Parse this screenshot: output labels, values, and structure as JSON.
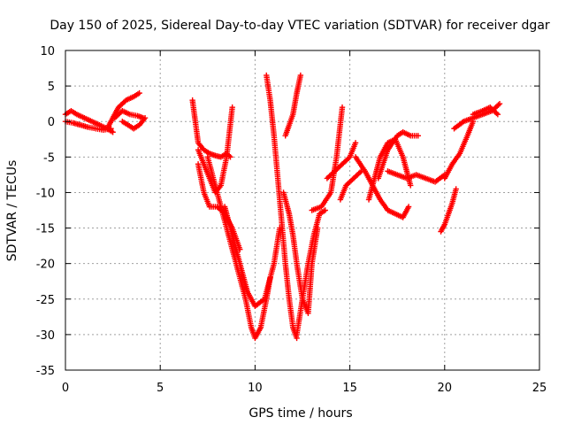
{
  "chart_data": {
    "type": "scatter",
    "title": "Day 150 of 2025, Sidereal Day-to-day VTEC variation (SDTVAR) for receiver dgar",
    "xlabel": "GPS time / hours",
    "ylabel": "SDTVAR / TECUs",
    "xlim": [
      0,
      25
    ],
    "ylim": [
      -35,
      10
    ],
    "xticks": [
      0,
      5,
      10,
      15,
      20,
      25
    ],
    "yticks": [
      10,
      5,
      0,
      -5,
      -10,
      -15,
      -20,
      -25,
      -30,
      -35
    ],
    "grid": true,
    "marker": "plus",
    "color": "#ff0000",
    "series": [
      {
        "x": [
          0.0,
          0.3,
          0.6,
          1.0,
          1.4,
          1.8,
          2.2,
          2.5
        ],
        "y": [
          1.0,
          1.5,
          1.0,
          0.5,
          0.0,
          -0.5,
          -1.0,
          -1.5
        ]
      },
      {
        "x": [
          0.0,
          0.4,
          0.8,
          1.2,
          1.6,
          2.0,
          2.4
        ],
        "y": [
          0.0,
          -0.2,
          -0.5,
          -0.8,
          -1.0,
          -1.2,
          -1.0
        ]
      },
      {
        "x": [
          2.2,
          2.5,
          2.8,
          3.2,
          3.6,
          3.9
        ],
        "y": [
          -1.0,
          0.5,
          2.0,
          3.0,
          3.5,
          4.0
        ]
      },
      {
        "x": [
          3.0,
          3.3,
          3.6,
          3.9,
          4.2
        ],
        "y": [
          0.0,
          -0.5,
          -1.0,
          -0.5,
          0.5
        ]
      },
      {
        "x": [
          2.6,
          3.0,
          3.4,
          3.8,
          4.1
        ],
        "y": [
          0.5,
          1.5,
          1.0,
          0.8,
          0.5
        ]
      },
      {
        "x": [
          6.7,
          7.0,
          7.3,
          7.6,
          7.9,
          8.2,
          8.5,
          8.7
        ],
        "y": [
          3.0,
          -3.0,
          -4.0,
          -4.5,
          -4.8,
          -5.0,
          -4.5,
          -5.0
        ]
      },
      {
        "x": [
          7.0,
          7.3,
          7.6,
          7.9,
          8.2,
          8.5,
          8.8
        ],
        "y": [
          -4.0,
          -6.0,
          -8.0,
          -10.0,
          -9.0,
          -5.0,
          2.0
        ]
      },
      {
        "x": [
          7.0,
          7.3,
          7.6,
          8.0,
          8.4,
          8.8,
          9.2
        ],
        "y": [
          -6.0,
          -10.0,
          -12.0,
          -12.0,
          -13.0,
          -15.0,
          -18.0
        ]
      },
      {
        "x": [
          7.5,
          8.0,
          8.5,
          9.0,
          9.5,
          9.8,
          10.0,
          10.3,
          10.6,
          10.8
        ],
        "y": [
          -5.0,
          -10.0,
          -15.0,
          -20.0,
          -25.0,
          -29.0,
          -30.5,
          -29.0,
          -25.0,
          -22.0
        ]
      },
      {
        "x": [
          8.4,
          8.8,
          9.2,
          9.6,
          10.0,
          10.5,
          11.0,
          11.3
        ],
        "y": [
          -12.0,
          -16.0,
          -20.0,
          -24.0,
          -26.0,
          -25.0,
          -20.0,
          -15.0
        ]
      },
      {
        "x": [
          10.6,
          10.8,
          11.0,
          11.2,
          11.4,
          11.6,
          11.8,
          12.0,
          12.2
        ],
        "y": [
          6.5,
          3.0,
          -2.0,
          -8.0,
          -14.0,
          -20.0,
          -25.0,
          -29.0,
          -30.5
        ]
      },
      {
        "x": [
          11.5,
          11.8,
          12.0,
          12.2,
          12.5,
          12.8,
          13.0,
          13.3
        ],
        "y": [
          -10.0,
          -13.0,
          -16.0,
          -20.0,
          -25.0,
          -27.0,
          -20.0,
          -15.0
        ]
      },
      {
        "x": [
          11.6,
          11.8,
          12.0,
          12.2,
          12.4
        ],
        "y": [
          -2.0,
          -0.5,
          1.0,
          4.0,
          6.5
        ]
      },
      {
        "x": [
          12.2,
          12.5,
          12.8,
          13.1,
          13.4,
          13.7
        ],
        "y": [
          -30.0,
          -25.0,
          -20.0,
          -16.0,
          -13.0,
          -12.5
        ]
      },
      {
        "x": [
          13.0,
          13.5,
          14.0,
          14.3,
          14.6
        ],
        "y": [
          -12.5,
          -12.0,
          -10.0,
          -5.0,
          2.0
        ]
      },
      {
        "x": [
          13.8,
          14.2,
          14.6,
          15.0,
          15.3
        ],
        "y": [
          -8.0,
          -7.0,
          -6.0,
          -5.0,
          -3.0
        ]
      },
      {
        "x": [
          14.5,
          14.8,
          15.2,
          15.6
        ],
        "y": [
          -11.0,
          -9.0,
          -8.0,
          -7.0
        ]
      },
      {
        "x": [
          15.3,
          15.8,
          16.2,
          16.6,
          17.0,
          17.4,
          17.8,
          18.1
        ],
        "y": [
          -5.0,
          -7.0,
          -9.0,
          -11.0,
          -12.5,
          -13.0,
          -13.5,
          -12.0
        ]
      },
      {
        "x": [
          16.0,
          16.3,
          16.6,
          17.0,
          17.4,
          17.8,
          18.2
        ],
        "y": [
          -11.0,
          -8.0,
          -5.0,
          -3.0,
          -2.5,
          -5.0,
          -9.0
        ]
      },
      {
        "x": [
          16.5,
          17.0,
          17.5,
          17.8,
          18.2,
          18.6
        ],
        "y": [
          -8.0,
          -4.0,
          -2.0,
          -1.5,
          -2.0,
          -2.0
        ]
      },
      {
        "x": [
          17.0,
          17.5,
          18.0,
          18.5,
          19.0,
          19.5,
          20.0
        ],
        "y": [
          -7.0,
          -7.5,
          -8.0,
          -7.5,
          -8.0,
          -8.5,
          -7.5
        ]
      },
      {
        "x": [
          20.0,
          20.4,
          20.8,
          21.2,
          21.5
        ],
        "y": [
          -8.0,
          -6.0,
          -4.5,
          -2.0,
          0.0
        ]
      },
      {
        "x": [
          19.8,
          20.0,
          20.2,
          20.4,
          20.6
        ],
        "y": [
          -15.5,
          -14.5,
          -13.0,
          -11.5,
          -9.5
        ]
      },
      {
        "x": [
          20.5,
          21.0,
          21.5,
          22.0,
          22.5,
          22.9
        ],
        "y": [
          -1.0,
          0.0,
          0.5,
          1.0,
          1.5,
          2.5
        ]
      },
      {
        "x": [
          21.5,
          22.0,
          22.4,
          22.8
        ],
        "y": [
          1.0,
          1.5,
          2.0,
          1.0
        ]
      }
    ]
  }
}
